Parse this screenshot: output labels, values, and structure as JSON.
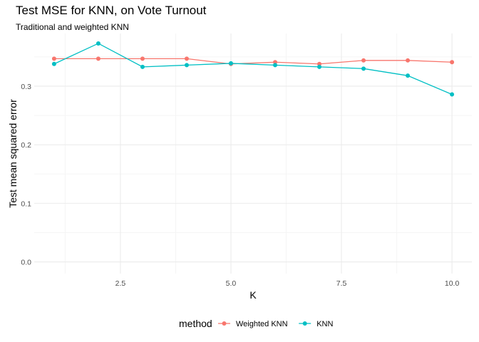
{
  "colors": {
    "weighted": "#F8766D",
    "knn": "#00BFC4",
    "grid_major": "#EBEBEB",
    "grid_minor": "#F5F5F5"
  },
  "chart_data": {
    "type": "line",
    "title": "Test MSE for KNN, on Vote Turnout",
    "subtitle": "Traditional and weighted KNN",
    "xlabel": "K",
    "ylabel": "Test mean squared error",
    "xlim": [
      0.55,
      10.45
    ],
    "ylim": [
      -0.02,
      0.39
    ],
    "xticks": [
      2.5,
      5.0,
      7.5,
      10.0
    ],
    "xtick_labels": [
      "2.5",
      "5.0",
      "7.5",
      "10.0"
    ],
    "yticks": [
      0.0,
      0.1,
      0.2,
      0.3
    ],
    "ytick_labels": [
      "0.0",
      "0.1",
      "0.2",
      "0.3"
    ],
    "grid": true,
    "legend": {
      "title": "method",
      "position": "bottom",
      "entries": [
        "Weighted KNN",
        "KNN"
      ]
    },
    "x": [
      1,
      2,
      3,
      4,
      5,
      6,
      7,
      8,
      9,
      10
    ],
    "series": [
      {
        "name": "Weighted KNN",
        "values": [
          0.347,
          0.347,
          0.347,
          0.347,
          0.338,
          0.341,
          0.338,
          0.344,
          0.344,
          0.341
        ]
      },
      {
        "name": "KNN",
        "values": [
          0.338,
          0.373,
          0.333,
          0.336,
          0.339,
          0.336,
          0.333,
          0.33,
          0.318,
          0.286
        ]
      }
    ]
  }
}
